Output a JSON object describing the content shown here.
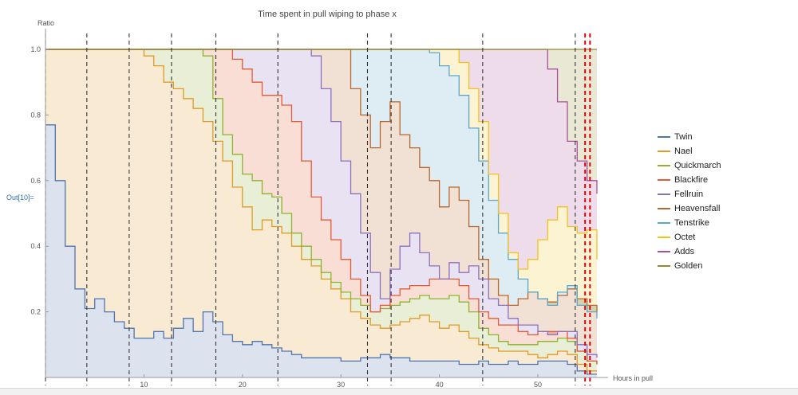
{
  "cell_label": "Out[10]=",
  "chart_data": {
    "type": "area",
    "title": "Time spent in pull wiping to phase x",
    "xlabel": "Hours in pull",
    "ylabel": "Ratio",
    "xlim": [
      0,
      56
    ],
    "ylim": [
      0,
      1.0
    ],
    "x_ticks": [
      10,
      20,
      30,
      40,
      50
    ],
    "y_ticks": [
      0.2,
      0.4,
      0.6,
      0.8,
      1.0
    ],
    "y_tick_labels": [
      "0.2",
      "0.4",
      "0.6",
      "0.8",
      "1.0"
    ],
    "x_tick_labels": [
      "10",
      "20",
      "30",
      "40",
      "50"
    ],
    "stacked_cumulative": true,
    "vertical_markers": [
      {
        "x": 0.0,
        "color": "#333333"
      },
      {
        "x": 4.2,
        "color": "#333333"
      },
      {
        "x": 8.5,
        "color": "#333333"
      },
      {
        "x": 12.8,
        "color": "#333333"
      },
      {
        "x": 17.3,
        "color": "#333333"
      },
      {
        "x": 23.6,
        "color": "#333333"
      },
      {
        "x": 32.7,
        "color": "#333333"
      },
      {
        "x": 35.1,
        "color": "#333333"
      },
      {
        "x": 44.4,
        "color": "#333333"
      },
      {
        "x": 53.8,
        "color": "#333333"
      },
      {
        "x": 54.8,
        "color": "#dd0000"
      },
      {
        "x": 55.3,
        "color": "#dd0000"
      }
    ],
    "x": [
      0,
      1,
      2,
      3,
      4,
      5,
      6,
      7,
      8,
      9,
      10,
      11,
      12,
      13,
      14,
      15,
      16,
      17,
      18,
      19,
      20,
      21,
      22,
      23,
      24,
      25,
      26,
      27,
      28,
      29,
      30,
      31,
      32,
      33,
      34,
      35,
      36,
      37,
      38,
      39,
      40,
      41,
      42,
      43,
      44,
      45,
      46,
      47,
      48,
      49,
      50,
      51,
      52,
      53,
      54,
      55,
      56
    ],
    "series": [
      {
        "name": "Twin",
        "color": "#4f74ae",
        "values": [
          0.77,
          0.6,
          0.4,
          0.27,
          0.21,
          0.24,
          0.2,
          0.17,
          0.15,
          0.12,
          0.12,
          0.14,
          0.12,
          0.15,
          0.18,
          0.14,
          0.2,
          0.17,
          0.13,
          0.11,
          0.1,
          0.11,
          0.1,
          0.09,
          0.08,
          0.07,
          0.06,
          0.06,
          0.06,
          0.06,
          0.05,
          0.05,
          0.06,
          0.06,
          0.07,
          0.06,
          0.06,
          0.05,
          0.05,
          0.05,
          0.05,
          0.05,
          0.04,
          0.04,
          0.05,
          0.04,
          0.04,
          0.05,
          0.04,
          0.04,
          0.05,
          0.05,
          0.05,
          0.04,
          0.02,
          0.01,
          0.01
        ]
      },
      {
        "name": "Nael",
        "color": "#e19a25",
        "values": [
          1,
          1,
          1,
          1,
          1,
          1,
          1,
          1,
          1,
          1,
          0.98,
          0.95,
          0.9,
          0.88,
          0.85,
          0.82,
          0.78,
          0.72,
          0.66,
          0.58,
          0.52,
          0.45,
          0.48,
          0.46,
          0.44,
          0.4,
          0.36,
          0.34,
          0.3,
          0.27,
          0.24,
          0.2,
          0.18,
          0.16,
          0.15,
          0.16,
          0.17,
          0.18,
          0.19,
          0.17,
          0.15,
          0.16,
          0.14,
          0.12,
          0.1,
          0.09,
          0.08,
          0.08,
          0.08,
          0.07,
          0.06,
          0.07,
          0.08,
          0.07,
          0.04,
          0.02,
          0.02
        ]
      },
      {
        "name": "Quickmarch",
        "color": "#8fb131",
        "values": [
          1,
          1,
          1,
          1,
          1,
          1,
          1,
          1,
          1,
          1,
          1,
          1,
          1,
          1,
          1,
          1,
          0.98,
          0.85,
          0.74,
          0.68,
          0.62,
          0.6,
          0.56,
          0.55,
          0.5,
          0.44,
          0.4,
          0.36,
          0.32,
          0.29,
          0.26,
          0.24,
          0.22,
          0.2,
          0.21,
          0.22,
          0.23,
          0.24,
          0.25,
          0.24,
          0.24,
          0.25,
          0.23,
          0.2,
          0.15,
          0.13,
          0.11,
          0.1,
          0.1,
          0.1,
          0.11,
          0.11,
          0.12,
          0.11,
          0.08,
          0.05,
          0.04
        ]
      },
      {
        "name": "Blackfire",
        "color": "#e35a34",
        "values": [
          1,
          1,
          1,
          1,
          1,
          1,
          1,
          1,
          1,
          1,
          1,
          1,
          1,
          1,
          1,
          1,
          1,
          1,
          1,
          0.97,
          0.94,
          0.9,
          0.86,
          0.86,
          0.83,
          0.78,
          0.66,
          0.55,
          0.48,
          0.42,
          0.36,
          0.3,
          0.25,
          0.2,
          0.22,
          0.25,
          0.27,
          0.28,
          0.28,
          0.3,
          0.3,
          0.3,
          0.28,
          0.24,
          0.2,
          0.18,
          0.16,
          0.16,
          0.14,
          0.13,
          0.14,
          0.14,
          0.14,
          0.12,
          0.08,
          0.05,
          0.04
        ]
      },
      {
        "name": "Fellruin",
        "color": "#8a70bd",
        "values": [
          1,
          1,
          1,
          1,
          1,
          1,
          1,
          1,
          1,
          1,
          1,
          1,
          1,
          1,
          1,
          1,
          1,
          1,
          1,
          1,
          1,
          1,
          1,
          1,
          1,
          1,
          1,
          0.98,
          0.88,
          0.78,
          0.66,
          0.56,
          0.44,
          0.32,
          0.24,
          0.33,
          0.4,
          0.44,
          0.38,
          0.34,
          0.3,
          0.35,
          0.32,
          0.34,
          0.3,
          0.24,
          0.22,
          0.18,
          0.16,
          0.16,
          0.14,
          0.13,
          0.14,
          0.14,
          0.1,
          0.07,
          0.06
        ]
      },
      {
        "name": "Heavensfall",
        "color": "#b8662a",
        "values": [
          1,
          1,
          1,
          1,
          1,
          1,
          1,
          1,
          1,
          1,
          1,
          1,
          1,
          1,
          1,
          1,
          1,
          1,
          1,
          1,
          1,
          1,
          1,
          1,
          1,
          1,
          1,
          1,
          1,
          1,
          1,
          0.88,
          0.8,
          0.7,
          0.78,
          0.84,
          0.74,
          0.7,
          0.64,
          0.6,
          0.52,
          0.58,
          0.54,
          0.46,
          0.36,
          0.3,
          0.25,
          0.22,
          0.24,
          0.26,
          0.24,
          0.23,
          0.25,
          0.27,
          0.24,
          0.22,
          0.2
        ]
      },
      {
        "name": "Tenstrike",
        "color": "#5aa6c9",
        "values": [
          1,
          1,
          1,
          1,
          1,
          1,
          1,
          1,
          1,
          1,
          1,
          1,
          1,
          1,
          1,
          1,
          1,
          1,
          1,
          1,
          1,
          1,
          1,
          1,
          1,
          1,
          1,
          1,
          1,
          1,
          1,
          1,
          1,
          1,
          1,
          1,
          1,
          1,
          1,
          0.99,
          0.95,
          0.92,
          0.86,
          0.76,
          0.66,
          0.54,
          0.44,
          0.36,
          0.3,
          0.26,
          0.24,
          0.22,
          0.26,
          0.28,
          0.22,
          0.2,
          0.18
        ]
      },
      {
        "name": "Octet",
        "color": "#f1c21f",
        "values": [
          1,
          1,
          1,
          1,
          1,
          1,
          1,
          1,
          1,
          1,
          1,
          1,
          1,
          1,
          1,
          1,
          1,
          1,
          1,
          1,
          1,
          1,
          1,
          1,
          1,
          1,
          1,
          1,
          1,
          1,
          1,
          1,
          1,
          1,
          1,
          1,
          1,
          1,
          1,
          1,
          1,
          1,
          0.96,
          0.88,
          0.78,
          0.62,
          0.5,
          0.38,
          0.33,
          0.36,
          0.42,
          0.48,
          0.52,
          0.46,
          0.44,
          0.45,
          0.36
        ]
      },
      {
        "name": "Adds",
        "color": "#a9519c",
        "values": [
          1,
          1,
          1,
          1,
          1,
          1,
          1,
          1,
          1,
          1,
          1,
          1,
          1,
          1,
          1,
          1,
          1,
          1,
          1,
          1,
          1,
          1,
          1,
          1,
          1,
          1,
          1,
          1,
          1,
          1,
          1,
          1,
          1,
          1,
          1,
          1,
          1,
          1,
          1,
          1,
          1,
          1,
          1,
          1,
          1,
          1,
          1,
          1,
          1,
          1,
          1,
          0.94,
          0.84,
          0.72,
          0.66,
          0.6,
          0.56
        ]
      },
      {
        "name": "Golden",
        "color": "#8f8a2b",
        "values": [
          1,
          1,
          1,
          1,
          1,
          1,
          1,
          1,
          1,
          1,
          1,
          1,
          1,
          1,
          1,
          1,
          1,
          1,
          1,
          1,
          1,
          1,
          1,
          1,
          1,
          1,
          1,
          1,
          1,
          1,
          1,
          1,
          1,
          1,
          1,
          1,
          1,
          1,
          1,
          1,
          1,
          1,
          1,
          1,
          1,
          1,
          1,
          1,
          1,
          1,
          1,
          1,
          1,
          1,
          1,
          1,
          1
        ]
      }
    ],
    "legend_position": "right",
    "grid": false
  }
}
